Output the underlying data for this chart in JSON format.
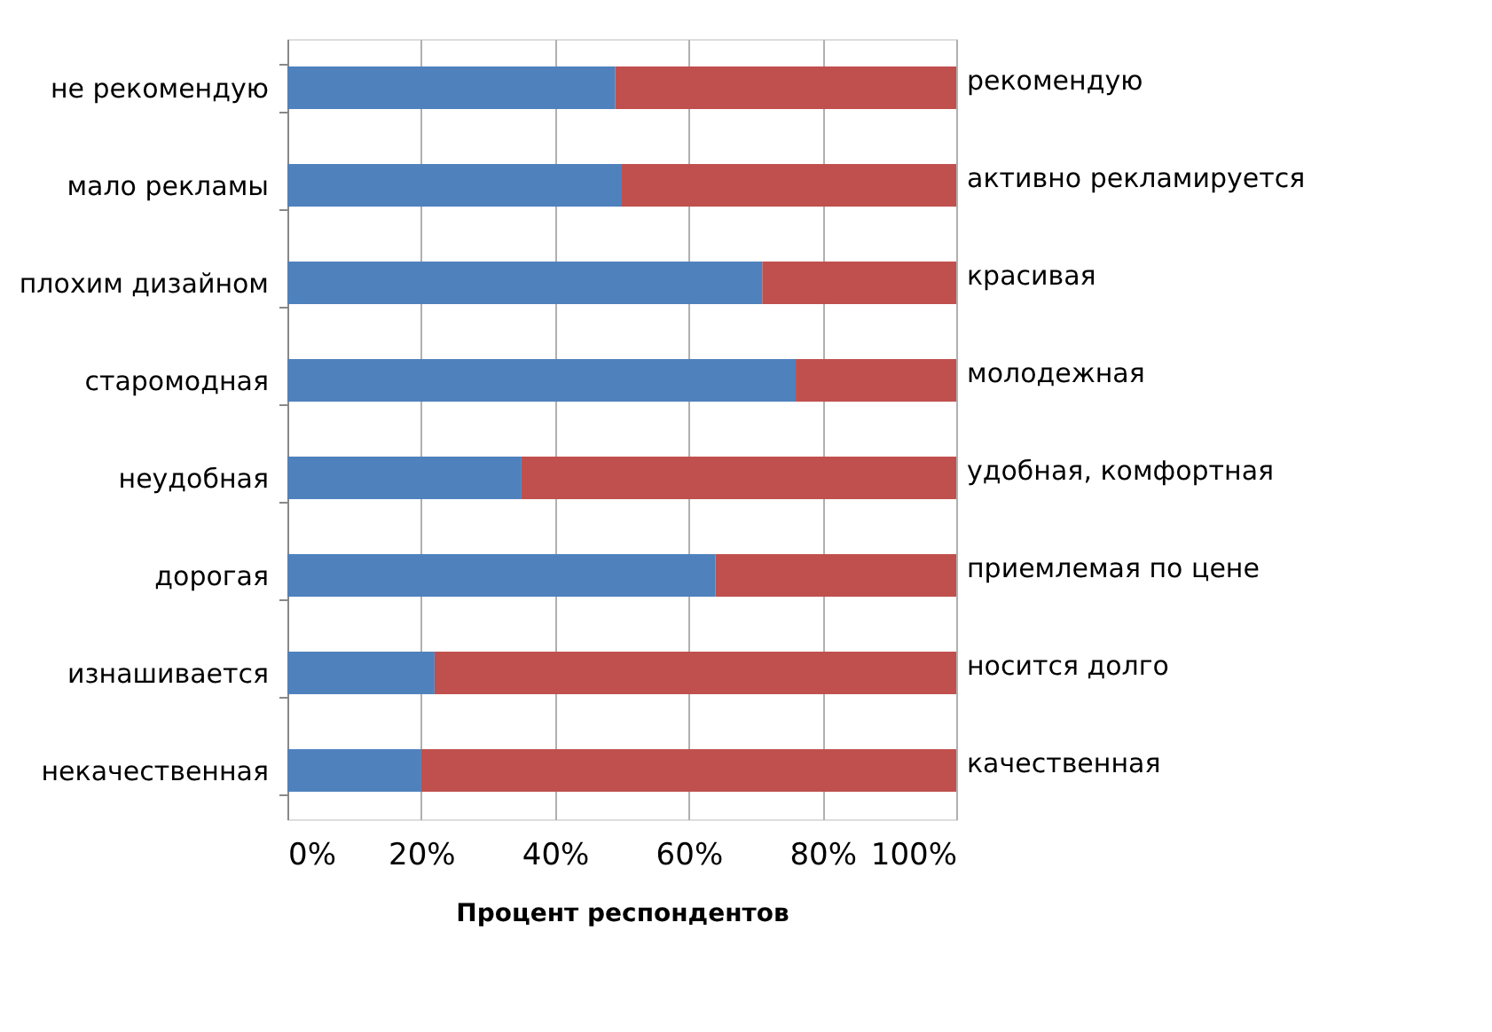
{
  "chart_data": {
    "type": "bar",
    "orientation": "horizontal",
    "stacked": true,
    "categories": [
      "не рекомендую",
      "мало рекламы",
      "плохим дизайном",
      "старомодная",
      "неудобная",
      "дорогая",
      "изнашивается",
      "некачественная"
    ],
    "series": [
      {
        "color": "#4f81bd",
        "values": [
          49,
          50,
          71,
          76,
          35,
          64,
          22,
          20
        ]
      },
      {
        "color": "#c0504d",
        "values": [
          51,
          50,
          29,
          24,
          65,
          36,
          78,
          80
        ]
      }
    ],
    "xlim": [
      0,
      100
    ],
    "xticks": [
      {
        "value": 0,
        "label": "0%"
      },
      {
        "value": 20,
        "label": "20%"
      },
      {
        "value": 40,
        "label": "40%"
      },
      {
        "value": 60,
        "label": "60%"
      },
      {
        "value": 80,
        "label": "80%"
      },
      {
        "value": 100,
        "label": "100%"
      }
    ],
    "xlabel": "Процент респондентов",
    "grid": "x",
    "legend": false,
    "annotations": [
      "рекомендую",
      "активно рекламируется",
      "красивая",
      "молодежная",
      "удобная, комфортная",
      "приемлемая по цене",
      "носится долго",
      "качественная"
    ]
  }
}
